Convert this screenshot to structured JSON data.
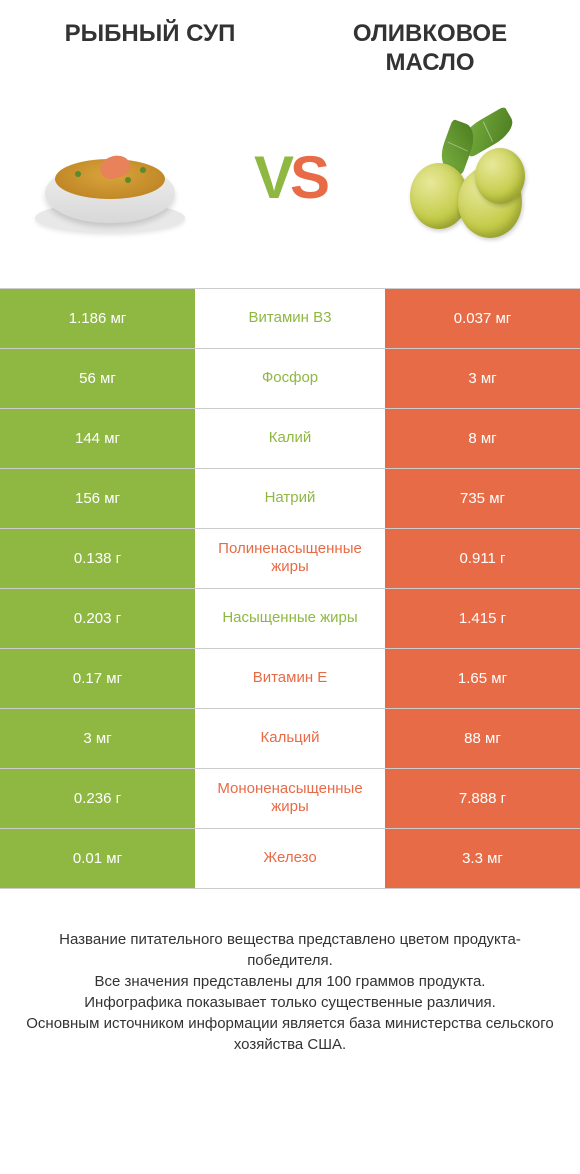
{
  "header": {
    "left_title": "Рыбный суп",
    "right_title": "Оливковое масло"
  },
  "vs": {
    "text_v": "V",
    "text_s": "S"
  },
  "colors": {
    "green": "#8fb843",
    "orange": "#e86b47",
    "border": "#cccccc",
    "text": "#333333"
  },
  "rows": [
    {
      "left": "1.186 мг",
      "mid": "Витамин B3",
      "right": "0.037 мг",
      "winner": "green"
    },
    {
      "left": "56 мг",
      "mid": "Фосфор",
      "right": "3 мг",
      "winner": "green"
    },
    {
      "left": "144 мг",
      "mid": "Калий",
      "right": "8 мг",
      "winner": "green"
    },
    {
      "left": "156 мг",
      "mid": "Натрий",
      "right": "735 мг",
      "winner": "green"
    },
    {
      "left": "0.138 г",
      "mid": "Полиненасыщенные жиры",
      "right": "0.911 г",
      "winner": "orange"
    },
    {
      "left": "0.203 г",
      "mid": "Насыщенные жиры",
      "right": "1.415 г",
      "winner": "green"
    },
    {
      "left": "0.17 мг",
      "mid": "Витамин E",
      "right": "1.65 мг",
      "winner": "orange"
    },
    {
      "left": "3 мг",
      "mid": "Кальций",
      "right": "88 мг",
      "winner": "orange"
    },
    {
      "left": "0.236 г",
      "mid": "Мононенасыщенные жиры",
      "right": "7.888 г",
      "winner": "orange"
    },
    {
      "left": "0.01 мг",
      "mid": "Железо",
      "right": "3.3 мг",
      "winner": "orange"
    }
  ],
  "footer": {
    "line1": "Название питательного вещества представлено цветом продукта-победителя.",
    "line2": "Все значения представлены для 100 граммов продукта.",
    "line3": "Инфографика показывает только существенные различия.",
    "line4": "Основным источником информации является база министерства сельского хозяйства США."
  }
}
